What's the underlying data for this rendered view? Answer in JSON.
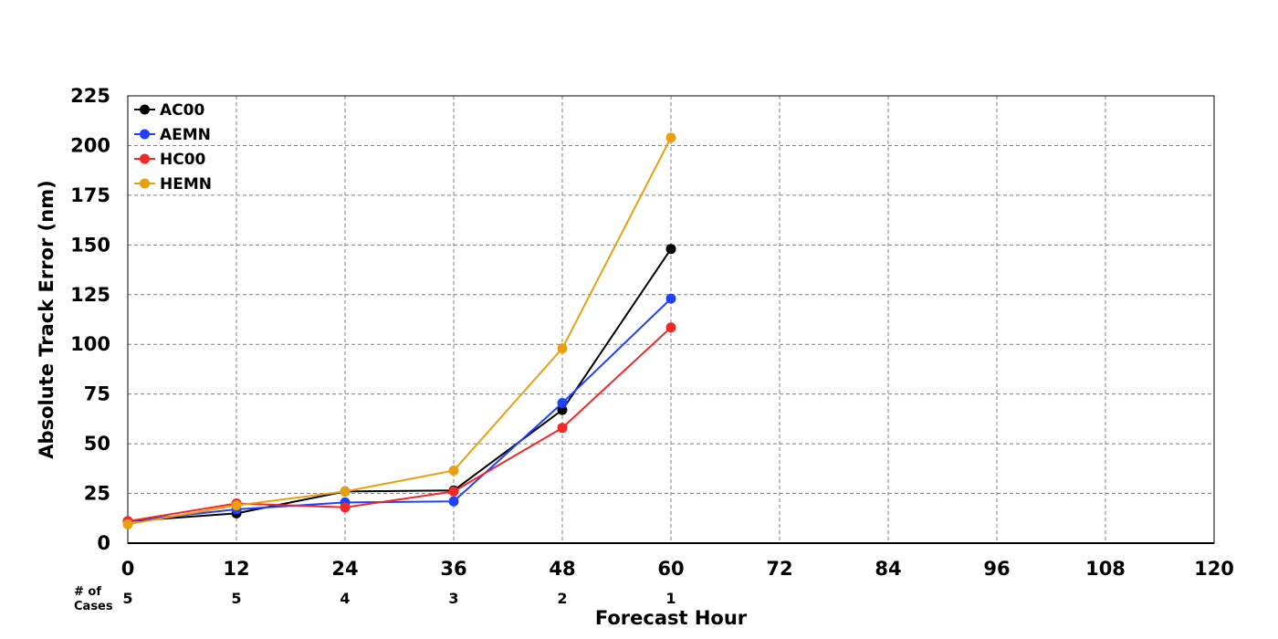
{
  "chart_data": {
    "type": "line",
    "xlabel": "Forecast Hour",
    "ylabel": "Absolute Track Error (nm)",
    "xlim": [
      0,
      120
    ],
    "ylim": [
      0,
      225
    ],
    "x_ticks": [
      "0",
      "12",
      "24",
      "36",
      "48",
      "60",
      "72",
      "84",
      "96",
      "108",
      "120"
    ],
    "y_ticks": [
      "0",
      "25",
      "50",
      "75",
      "100",
      "125",
      "150",
      "175",
      "200",
      "225"
    ],
    "grid": true,
    "legend_position": "top-left",
    "cases_label_line1": "# of",
    "cases_label_line2": "Cases",
    "cases": [
      "5",
      "5",
      "4",
      "3",
      "2",
      "1"
    ],
    "x": [
      0,
      12,
      24,
      36,
      48,
      60
    ],
    "series": [
      {
        "name": "AC00",
        "color": "#000000",
        "values": [
          11,
          15,
          26,
          26.5,
          67,
          148
        ]
      },
      {
        "name": "AEMN",
        "color": "#2040ff",
        "values": [
          11,
          17,
          20.5,
          21,
          70.5,
          123
        ]
      },
      {
        "name": "HC00",
        "color": "#f02828",
        "values": [
          11,
          20,
          18,
          26,
          58,
          108.5
        ]
      },
      {
        "name": "HEMN",
        "color": "#e8a010",
        "values": [
          9.5,
          19,
          26,
          36.5,
          98,
          204
        ]
      }
    ]
  }
}
